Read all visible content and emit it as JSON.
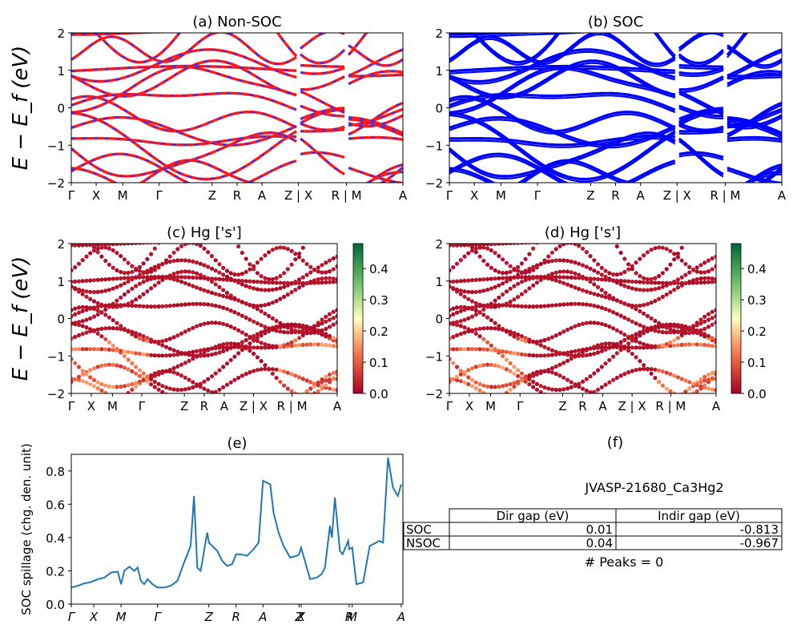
{
  "figure": {
    "energy_axis_label": "E − E_f (eV)",
    "colors": {
      "nsoc_band": "#ff1a1a",
      "nsoc_dash": "#2f2fff",
      "soc_band": "#0000ff",
      "spillage_line": "#1f77b4"
    }
  },
  "chart_data": [
    {
      "id": "a",
      "type": "line",
      "title": "(a) Non-SOC",
      "ylim": [
        -2,
        2
      ],
      "yticks": [
        "2",
        "1",
        "0",
        "−1",
        "−2"
      ],
      "kpath": [
        {
          "label": "Γ",
          "pos": 0.0
        },
        {
          "label": "X",
          "pos": 0.075
        },
        {
          "label": "M",
          "pos": 0.155
        },
        {
          "label": "Γ",
          "pos": 0.265
        },
        {
          "label": "Z",
          "pos": 0.425
        },
        {
          "label": "R",
          "pos": 0.5
        },
        {
          "label": "A",
          "pos": 0.575
        },
        {
          "label": "Z | X",
          "pos": 0.685
        },
        {
          "label": "R | M",
          "pos": 0.83
        },
        {
          "label": "A",
          "pos": 1.0
        }
      ],
      "breaks": [
        0.685,
        0.83
      ]
    },
    {
      "id": "b",
      "type": "line",
      "title": "(b) SOC",
      "ylim": [
        -2,
        2
      ],
      "yticks": [
        "2",
        "1",
        "0",
        "−1",
        "−2"
      ],
      "kpath": [
        {
          "label": "Γ",
          "pos": 0.0
        },
        {
          "label": "X",
          "pos": 0.075
        },
        {
          "label": "M",
          "pos": 0.155
        },
        {
          "label": "Γ",
          "pos": 0.265
        },
        {
          "label": "Z",
          "pos": 0.425
        },
        {
          "label": "R",
          "pos": 0.5
        },
        {
          "label": "A",
          "pos": 0.575
        },
        {
          "label": "Z | X",
          "pos": 0.685
        },
        {
          "label": "R | M",
          "pos": 0.83
        },
        {
          "label": "A",
          "pos": 1.0
        }
      ],
      "breaks": [
        0.685,
        0.83
      ]
    },
    {
      "id": "c",
      "type": "scatter",
      "title": "(c)  Hg ['s']",
      "ylim": [
        -2,
        2
      ],
      "yticks": [
        "2",
        "1",
        "0",
        "−1",
        "−2"
      ],
      "kpath": [
        {
          "label": "Γ",
          "pos": 0.0
        },
        {
          "label": "X",
          "pos": 0.075
        },
        {
          "label": "M",
          "pos": 0.155
        },
        {
          "label": "Γ",
          "pos": 0.265
        },
        {
          "label": "Z",
          "pos": 0.425
        },
        {
          "label": "R",
          "pos": 0.5
        },
        {
          "label": "A",
          "pos": 0.575
        },
        {
          "label": "Z | X",
          "pos": 0.685
        },
        {
          "label": "R | M",
          "pos": 0.83
        },
        {
          "label": "A",
          "pos": 1.0
        }
      ],
      "colorbar": {
        "range": [
          0.0,
          0.48
        ],
        "ticks": [
          "0.0",
          "0.1",
          "0.2",
          "0.3",
          "0.4"
        ],
        "colormap": "RdYlGn"
      }
    },
    {
      "id": "d",
      "type": "scatter",
      "title": "(d) Hg ['s']",
      "ylim": [
        -2,
        2
      ],
      "yticks": [
        "2",
        "1",
        "0",
        "−1",
        "−2"
      ],
      "kpath": [
        {
          "label": "Γ",
          "pos": 0.0
        },
        {
          "label": "X",
          "pos": 0.075
        },
        {
          "label": "M",
          "pos": 0.155
        },
        {
          "label": "Γ",
          "pos": 0.265
        },
        {
          "label": "Z",
          "pos": 0.425
        },
        {
          "label": "R",
          "pos": 0.5
        },
        {
          "label": "A",
          "pos": 0.575
        },
        {
          "label": "Z | X",
          "pos": 0.685
        },
        {
          "label": "R | M",
          "pos": 0.83
        },
        {
          "label": "A",
          "pos": 1.0
        }
      ],
      "colorbar": {
        "range": [
          0.0,
          0.48
        ],
        "ticks": [
          "0.0",
          "0.1",
          "0.2",
          "0.3",
          "0.4"
        ],
        "colormap": "RdYlGn"
      }
    },
    {
      "id": "e",
      "type": "line",
      "title": "(e)",
      "ylabel": "SOC spillage (chg. den. unit)",
      "ylim": [
        0,
        0.9
      ],
      "yticks": [
        0.0,
        0.2,
        0.4,
        0.6,
        0.8
      ],
      "xticks": [
        {
          "label": "Γ",
          "pos": 0.0
        },
        {
          "label": "X",
          "pos": 0.068
        },
        {
          "label": "M",
          "pos": 0.15
        },
        {
          "label": "Γ",
          "pos": 0.26
        },
        {
          "label": "Z",
          "pos": 0.415
        },
        {
          "label": "R",
          "pos": 0.497
        },
        {
          "label": "A",
          "pos": 0.578
        },
        {
          "label": "Z",
          "pos": 0.687
        },
        {
          "label": "X",
          "pos": 0.693
        },
        {
          "label": "R",
          "pos": 0.838
        },
        {
          "label": "M",
          "pos": 0.847
        },
        {
          "label": "A",
          "pos": 0.995
        }
      ],
      "x": [
        0.0,
        0.02,
        0.04,
        0.055,
        0.068,
        0.08,
        0.1,
        0.12,
        0.14,
        0.15,
        0.16,
        0.175,
        0.19,
        0.2,
        0.21,
        0.22,
        0.23,
        0.245,
        0.26,
        0.28,
        0.3,
        0.32,
        0.34,
        0.36,
        0.37,
        0.38,
        0.39,
        0.41,
        0.415,
        0.43,
        0.44,
        0.455,
        0.47,
        0.485,
        0.497,
        0.51,
        0.53,
        0.55,
        0.565,
        0.578,
        0.6,
        0.61,
        0.625,
        0.64,
        0.66,
        0.68,
        0.687,
        0.693,
        0.72,
        0.74,
        0.755,
        0.765,
        0.78,
        0.786,
        0.795,
        0.81,
        0.818,
        0.835,
        0.838,
        0.847,
        0.86,
        0.88,
        0.9,
        0.92,
        0.928,
        0.94,
        0.955,
        0.97,
        0.985,
        0.995
      ],
      "y": [
        0.1,
        0.11,
        0.125,
        0.13,
        0.14,
        0.15,
        0.16,
        0.19,
        0.195,
        0.12,
        0.2,
        0.225,
        0.2,
        0.22,
        0.14,
        0.12,
        0.15,
        0.12,
        0.1,
        0.1,
        0.11,
        0.14,
        0.25,
        0.35,
        0.65,
        0.22,
        0.2,
        0.43,
        0.37,
        0.34,
        0.32,
        0.26,
        0.23,
        0.24,
        0.3,
        0.3,
        0.29,
        0.33,
        0.37,
        0.74,
        0.72,
        0.55,
        0.43,
        0.35,
        0.28,
        0.29,
        0.3,
        0.34,
        0.15,
        0.16,
        0.18,
        0.22,
        0.47,
        0.4,
        0.64,
        0.32,
        0.3,
        0.38,
        0.33,
        0.34,
        0.12,
        0.13,
        0.35,
        0.37,
        0.38,
        0.37,
        0.88,
        0.7,
        0.65,
        0.72
      ]
    },
    {
      "id": "f",
      "type": "table",
      "title": "(f)",
      "material": "JVASP-21680_Ca3Hg2",
      "columns": [
        "Dir gap (eV)",
        "Indir gap (eV)"
      ],
      "rows": [
        {
          "label": "SOC",
          "values": [
            "0.01",
            "-0.813"
          ]
        },
        {
          "label": "NSOC",
          "values": [
            "0.04",
            "-0.967"
          ]
        }
      ],
      "peaks_text": "# Peaks = 0"
    }
  ]
}
